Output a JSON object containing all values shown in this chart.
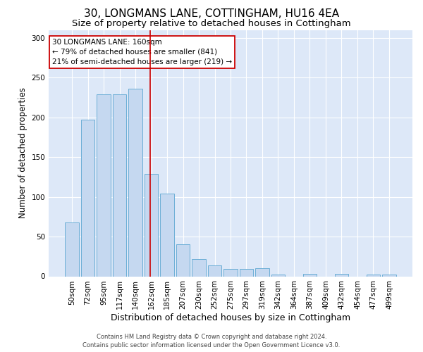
{
  "title": "30, LONGMANS LANE, COTTINGHAM, HU16 4EA",
  "subtitle": "Size of property relative to detached houses in Cottingham",
  "xlabel": "Distribution of detached houses by size in Cottingham",
  "ylabel": "Number of detached properties",
  "categories": [
    "50sqm",
    "72sqm",
    "95sqm",
    "117sqm",
    "140sqm",
    "162sqm",
    "185sqm",
    "207sqm",
    "230sqm",
    "252sqm",
    "275sqm",
    "297sqm",
    "319sqm",
    "342sqm",
    "364sqm",
    "387sqm",
    "409sqm",
    "432sqm",
    "454sqm",
    "477sqm",
    "499sqm"
  ],
  "values": [
    68,
    197,
    229,
    229,
    236,
    129,
    104,
    40,
    22,
    14,
    9,
    9,
    10,
    2,
    0,
    3,
    0,
    3,
    0,
    2,
    2
  ],
  "bar_color": "#c5d8f0",
  "bar_edge_color": "#6baed6",
  "vline_color": "#cc0000",
  "annotation_text": "30 LONGMANS LANE: 160sqm\n← 79% of detached houses are smaller (841)\n21% of semi-detached houses are larger (219) →",
  "annotation_box_color": "#ffffff",
  "annotation_box_edge": "#cc0000",
  "ylim": [
    0,
    310
  ],
  "yticks": [
    0,
    50,
    100,
    150,
    200,
    250,
    300
  ],
  "bg_color": "#dde8f8",
  "footer_line1": "Contains HM Land Registry data © Crown copyright and database right 2024.",
  "footer_line2": "Contains public sector information licensed under the Open Government Licence v3.0.",
  "title_fontsize": 11,
  "subtitle_fontsize": 9.5,
  "ylabel_fontsize": 8.5,
  "xlabel_fontsize": 9,
  "footer_fontsize": 6,
  "annotation_fontsize": 7.5,
  "tick_fontsize": 7.5
}
